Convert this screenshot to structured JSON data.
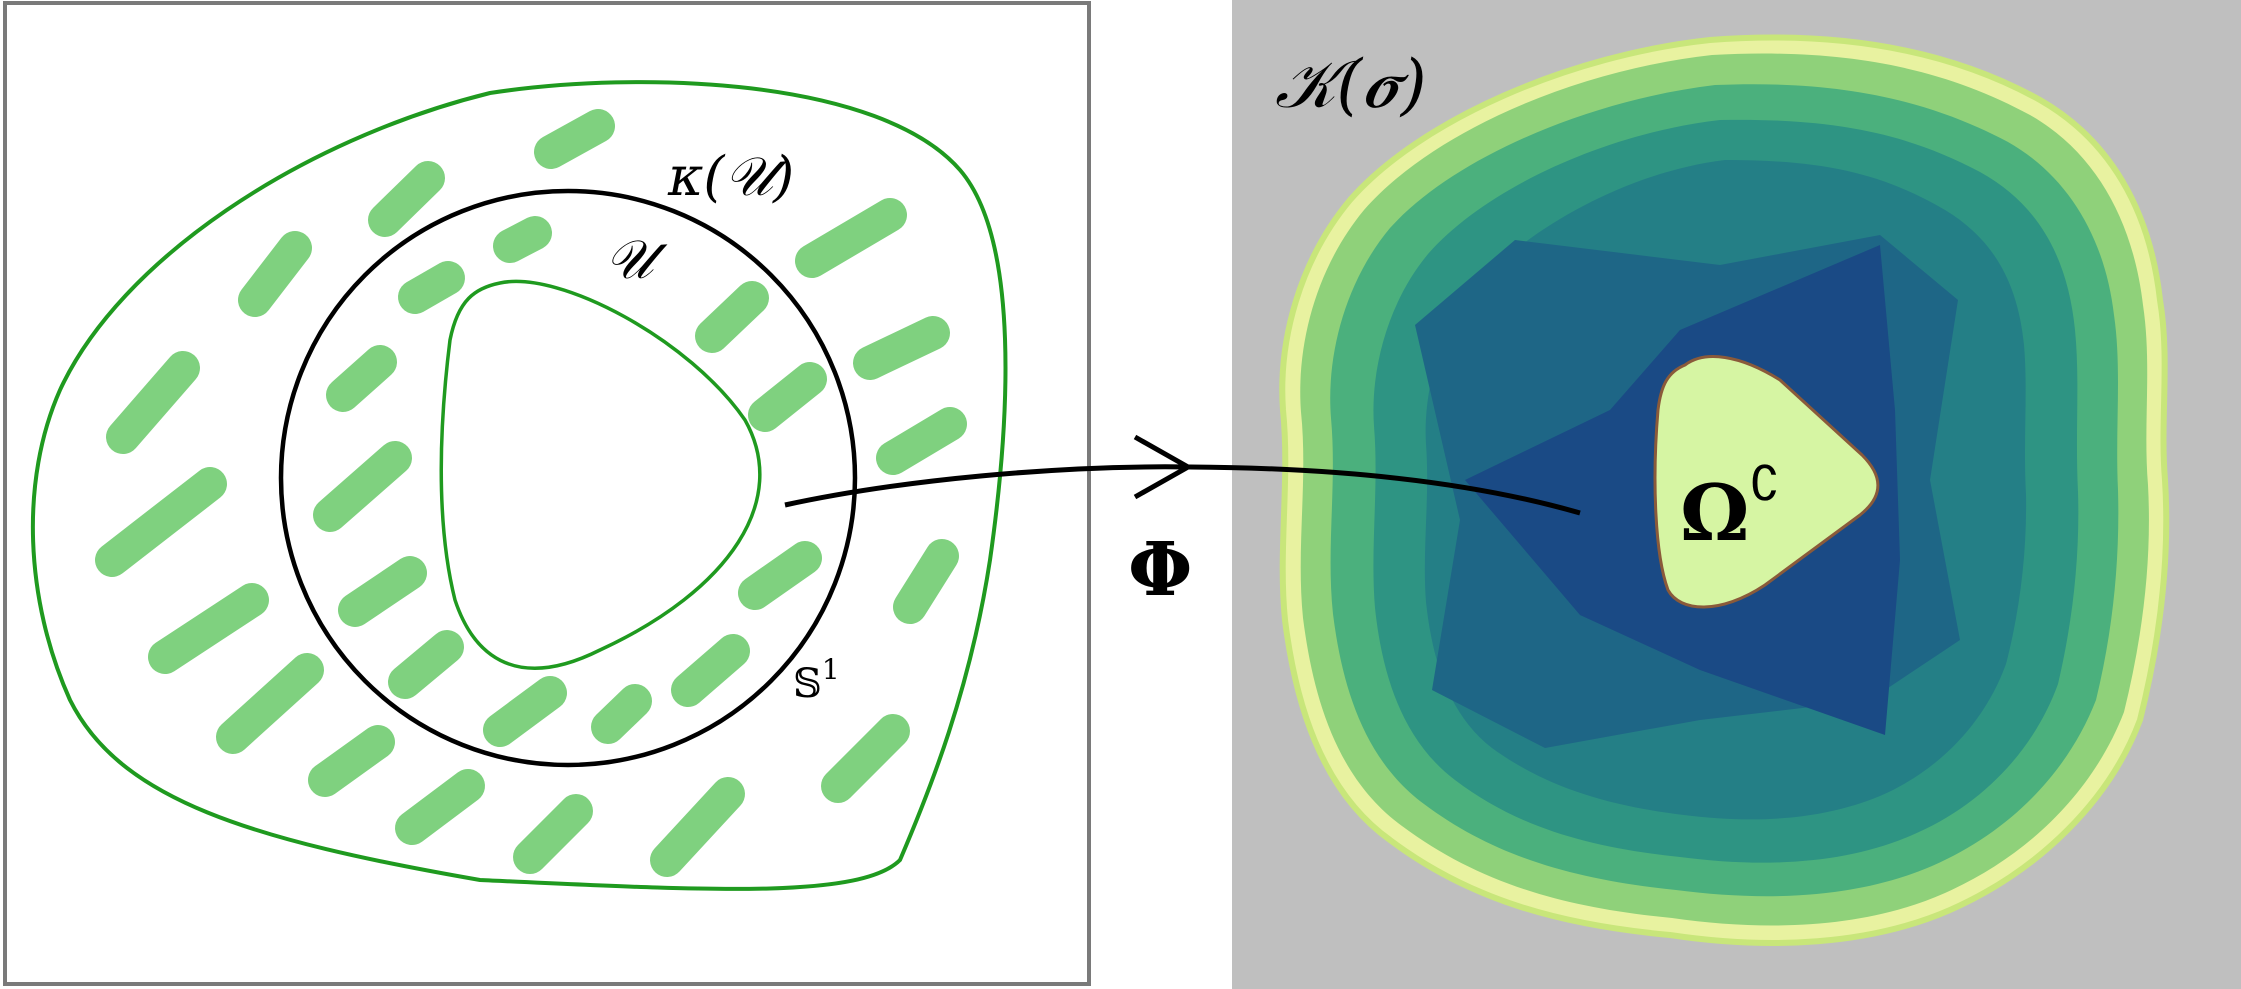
{
  "labels": {
    "kappa_u": "κ(𝒰)",
    "u": "𝒰",
    "circle": "𝕊",
    "circle_sup": "1",
    "phi": "Φ",
    "k_sigma": "𝒦(𝝈)",
    "omega": "Ω",
    "omega_sup": "∁"
  },
  "colors": {
    "frame": "#7a7a7a",
    "green_curve": "#1f9a1f",
    "dash": "#7fd17f",
    "gray_bg": "#bfbfbf",
    "level_outer": "#8fd17a",
    "level_1": "#4bb07d",
    "level_2": "#2e9483",
    "level_3": "#247f86",
    "level_4": "#1e6686",
    "level_5": "#1a4a85",
    "omega_fill": "#d6f5a3"
  }
}
